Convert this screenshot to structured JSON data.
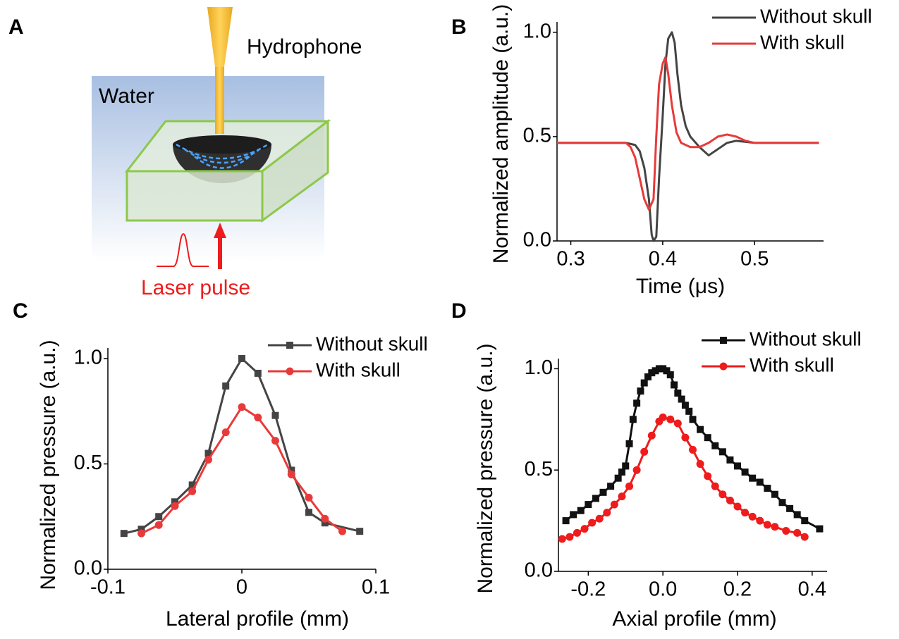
{
  "diagram": {
    "panel_label": "A",
    "hydrophone": "Hydrophone",
    "water": "Water",
    "laser": "Laser pulse"
  },
  "chart_data": [
    {
      "type": "line",
      "label": "B",
      "xlabel": "Time (μs)",
      "ylabel": "Normalized amplitude (a.u.)",
      "xlim": [
        0.285,
        0.575
      ],
      "ylim": [
        0,
        1.05
      ],
      "xticks": [
        0.3,
        0.4,
        0.5
      ],
      "yticks": [
        {
          "value": 0,
          "label": "0.0"
        },
        0.5,
        {
          "value": 1,
          "label": "1.0"
        }
      ],
      "legend": "upper right",
      "series": [
        {
          "name": "Without skull",
          "color": "#444444",
          "x": [
            0.285,
            0.3,
            0.32,
            0.34,
            0.36,
            0.37,
            0.375,
            0.38,
            0.385,
            0.388,
            0.39,
            0.393,
            0.396,
            0.4,
            0.403,
            0.406,
            0.41,
            0.413,
            0.416,
            0.42,
            0.425,
            0.43,
            0.44,
            0.45,
            0.46,
            0.47,
            0.48,
            0.5,
            0.52,
            0.54,
            0.57
          ],
          "values": [
            0.47,
            0.47,
            0.47,
            0.47,
            0.47,
            0.46,
            0.43,
            0.35,
            0.2,
            0.03,
            0,
            0.02,
            0.3,
            0.6,
            0.85,
            0.97,
            1.0,
            0.95,
            0.8,
            0.65,
            0.55,
            0.5,
            0.45,
            0.41,
            0.44,
            0.47,
            0.48,
            0.47,
            0.47,
            0.47,
            0.47
          ]
        },
        {
          "name": "With skull",
          "color": "#e83a3a",
          "x": [
            0.285,
            0.3,
            0.32,
            0.34,
            0.36,
            0.365,
            0.37,
            0.375,
            0.38,
            0.385,
            0.39,
            0.393,
            0.396,
            0.4,
            0.403,
            0.406,
            0.41,
            0.415,
            0.42,
            0.43,
            0.44,
            0.45,
            0.46,
            0.47,
            0.48,
            0.49,
            0.5,
            0.52,
            0.55,
            0.57
          ],
          "values": [
            0.47,
            0.47,
            0.47,
            0.47,
            0.47,
            0.45,
            0.4,
            0.3,
            0.2,
            0.15,
            0.2,
            0.5,
            0.75,
            0.85,
            0.88,
            0.8,
            0.65,
            0.52,
            0.47,
            0.45,
            0.45,
            0.47,
            0.5,
            0.51,
            0.5,
            0.48,
            0.47,
            0.47,
            0.47,
            0.47
          ]
        }
      ]
    },
    {
      "type": "line",
      "label": "C",
      "xlabel": "Lateral profile (mm)",
      "ylabel": "Normalized pressure (a.u.)",
      "xlim": [
        -0.1,
        0.1
      ],
      "ylim": [
        0,
        1.05
      ],
      "xticks": [
        -0.1,
        0,
        0.1
      ],
      "yticks": [
        {
          "value": 0,
          "label": "0.0"
        },
        0.5,
        {
          "value": 1,
          "label": "1.0"
        }
      ],
      "legend": "upper right",
      "series": [
        {
          "name": "Without skull",
          "color": "#444444",
          "marker": "square",
          "x": [
            -0.088,
            -0.075,
            -0.062,
            -0.05,
            -0.037,
            -0.025,
            -0.012,
            0,
            0.012,
            0.025,
            0.037,
            0.05,
            0.062,
            0.088
          ],
          "values": [
            0.17,
            0.19,
            0.25,
            0.32,
            0.4,
            0.55,
            0.87,
            1.0,
            0.93,
            0.73,
            0.47,
            0.27,
            0.22,
            0.18
          ]
        },
        {
          "name": "With skull",
          "color": "#e83a3a",
          "marker": "circle",
          "x": [
            -0.075,
            -0.062,
            -0.05,
            -0.037,
            -0.025,
            -0.012,
            0,
            0.012,
            0.025,
            0.037,
            0.05,
            0.062,
            0.075
          ],
          "values": [
            0.17,
            0.21,
            0.3,
            0.37,
            0.52,
            0.65,
            0.77,
            0.72,
            0.61,
            0.45,
            0.34,
            0.24,
            0.18
          ]
        }
      ]
    },
    {
      "type": "line",
      "label": "D",
      "xlabel": "Axial profile (mm)",
      "ylabel": "Normalized pressure (a.u.)",
      "xlim": [
        -0.28,
        0.44
      ],
      "ylim": [
        0,
        1.05
      ],
      "xticks": [
        -0.2,
        {
          "value": 0,
          "label": "0.0"
        },
        0.2,
        0.4
      ],
      "yticks": [
        {
          "value": 0,
          "label": "0.0"
        },
        0.5,
        {
          "value": 1,
          "label": "1.0"
        }
      ],
      "legend": "upper right",
      "series": [
        {
          "name": "Without skull",
          "color": "#111111",
          "marker": "square",
          "x": [
            -0.26,
            -0.24,
            -0.22,
            -0.2,
            -0.18,
            -0.16,
            -0.14,
            -0.12,
            -0.11,
            -0.1,
            -0.09,
            -0.08,
            -0.07,
            -0.06,
            -0.05,
            -0.04,
            -0.03,
            -0.02,
            -0.01,
            0,
            0.01,
            0.02,
            0.03,
            0.04,
            0.05,
            0.06,
            0.07,
            0.08,
            0.1,
            0.12,
            0.14,
            0.16,
            0.18,
            0.2,
            0.22,
            0.24,
            0.26,
            0.28,
            0.3,
            0.32,
            0.34,
            0.36,
            0.38,
            0.42
          ],
          "values": [
            0.25,
            0.28,
            0.3,
            0.33,
            0.36,
            0.39,
            0.42,
            0.46,
            0.49,
            0.52,
            0.63,
            0.75,
            0.83,
            0.89,
            0.93,
            0.96,
            0.98,
            0.99,
            1.0,
            1.0,
            0.99,
            0.97,
            0.92,
            0.88,
            0.85,
            0.82,
            0.79,
            0.75,
            0.7,
            0.66,
            0.62,
            0.59,
            0.55,
            0.52,
            0.49,
            0.46,
            0.44,
            0.41,
            0.38,
            0.34,
            0.31,
            0.28,
            0.25,
            0.21
          ]
        },
        {
          "name": "With skull",
          "color": "#ee1c1c",
          "marker": "circle",
          "x": [
            -0.27,
            -0.25,
            -0.23,
            -0.21,
            -0.19,
            -0.17,
            -0.15,
            -0.13,
            -0.11,
            -0.09,
            -0.07,
            -0.05,
            -0.03,
            -0.01,
            0,
            0.02,
            0.04,
            0.06,
            0.08,
            0.1,
            0.12,
            0.14,
            0.16,
            0.18,
            0.2,
            0.22,
            0.24,
            0.26,
            0.28,
            0.3,
            0.33,
            0.36,
            0.38
          ],
          "values": [
            0.16,
            0.17,
            0.19,
            0.21,
            0.24,
            0.26,
            0.29,
            0.33,
            0.37,
            0.42,
            0.5,
            0.59,
            0.67,
            0.74,
            0.76,
            0.75,
            0.73,
            0.66,
            0.6,
            0.53,
            0.47,
            0.42,
            0.38,
            0.35,
            0.32,
            0.29,
            0.27,
            0.25,
            0.23,
            0.22,
            0.2,
            0.19,
            0.17
          ]
        }
      ]
    }
  ]
}
